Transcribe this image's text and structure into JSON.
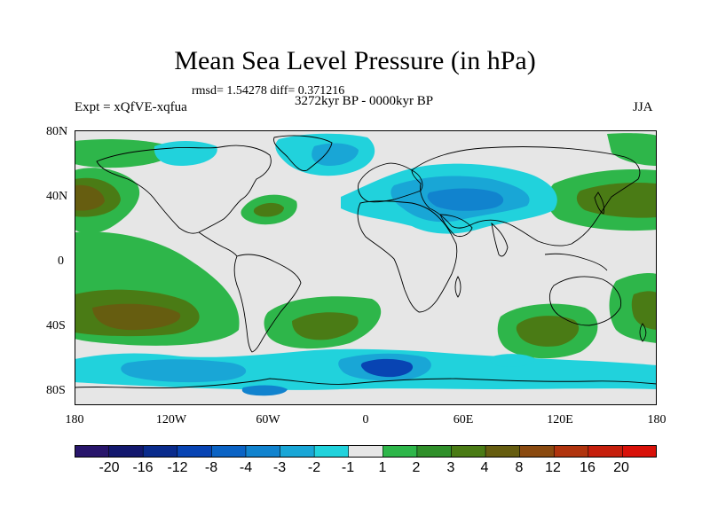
{
  "header": {
    "title": "Mean Sea Level Pressure (in hPa)",
    "stats": "rmsd= 1.54278 diff= 0.371216",
    "period": "3272kyr BP - 0000kyr BP",
    "experiment": "Expt = xQfVE-xqfua",
    "season": "JJA"
  },
  "axes": {
    "lat_labels": [
      "80N",
      "40N",
      "0",
      "40S",
      "80S"
    ],
    "lon_labels": [
      "180",
      "120W",
      "60W",
      "0",
      "60E",
      "120E",
      "180"
    ]
  },
  "colorbar": {
    "labels": [
      "-20",
      "-16",
      "-12",
      "-8",
      "-4",
      "-3",
      "-2",
      "-1",
      "1",
      "2",
      "3",
      "4",
      "8",
      "12",
      "16",
      "20"
    ],
    "colors": [
      "#28156b",
      "#13186e",
      "#0a2b8c",
      "#0844b3",
      "#0b63c4",
      "#1183ce",
      "#19a6d6",
      "#21d2dc",
      "#e6e6e6",
      "#2eb64a",
      "#2f8f2a",
      "#4a7b15",
      "#665d10",
      "#8a4a10",
      "#b0340e",
      "#c51f0c",
      "#d81109"
    ]
  },
  "map_colors": {
    "land_bg": "#e6e6e6",
    "pos1": "#2eb64a",
    "pos2": "#4a7b15",
    "pos3": "#665d10",
    "neg1": "#21d2dc",
    "neg2": "#19a6d6",
    "neg3": "#1183ce",
    "neg4": "#0844b3",
    "coast": "#000000"
  }
}
